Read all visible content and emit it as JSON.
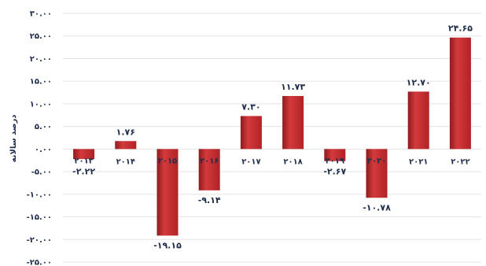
{
  "chart_data": {
    "type": "bar",
    "title": "",
    "xlabel": "",
    "ylabel": "درصد سالانه",
    "categories": [
      "۲۰۱۳",
      "۲۰۱۴",
      "۲۰۱۵",
      "۲۰۱۶",
      "۲۰۱۷",
      "۲۰۱۸",
      "۲۰۱۹",
      "۲۰۲۰",
      "۲۰۲۱",
      "۲۰۲۲"
    ],
    "values": [
      -2.22,
      1.76,
      -19.15,
      -9.14,
      7.3,
      11.73,
      -2.67,
      -10.78,
      12.7,
      24.65
    ],
    "value_labels": [
      "-۲.۲۲",
      "۱.۷۶",
      "-۱۹.۱۵",
      "-۹.۱۴",
      "۷.۳۰",
      "۱۱.۷۳",
      "-۲.۶۷",
      "-۱۰.۷۸",
      "۱۲.۷۰",
      "۲۴.۶۵"
    ],
    "ylim": [
      -25,
      30
    ],
    "yticks": [
      30,
      25,
      20,
      15,
      10,
      5,
      0,
      -5,
      -10,
      -15,
      -20,
      -25
    ],
    "ytick_labels": [
      "۳۰.۰۰",
      "۲۵.۰۰",
      "۲۰.۰۰",
      "۱۵.۰۰",
      "۱۰.۰۰",
      "۵.۰۰",
      "۰.۰۰",
      "-۵.۰۰",
      "-۱۰.۰۰",
      "-۱۵.۰۰",
      "-۲۰.۰۰",
      "-۲۵.۰۰"
    ],
    "grid": true,
    "legend": "none",
    "bar_color": "#c0282b",
    "bar_color_dark": "#8f1a1c",
    "text_color": "#1f2d4a"
  }
}
